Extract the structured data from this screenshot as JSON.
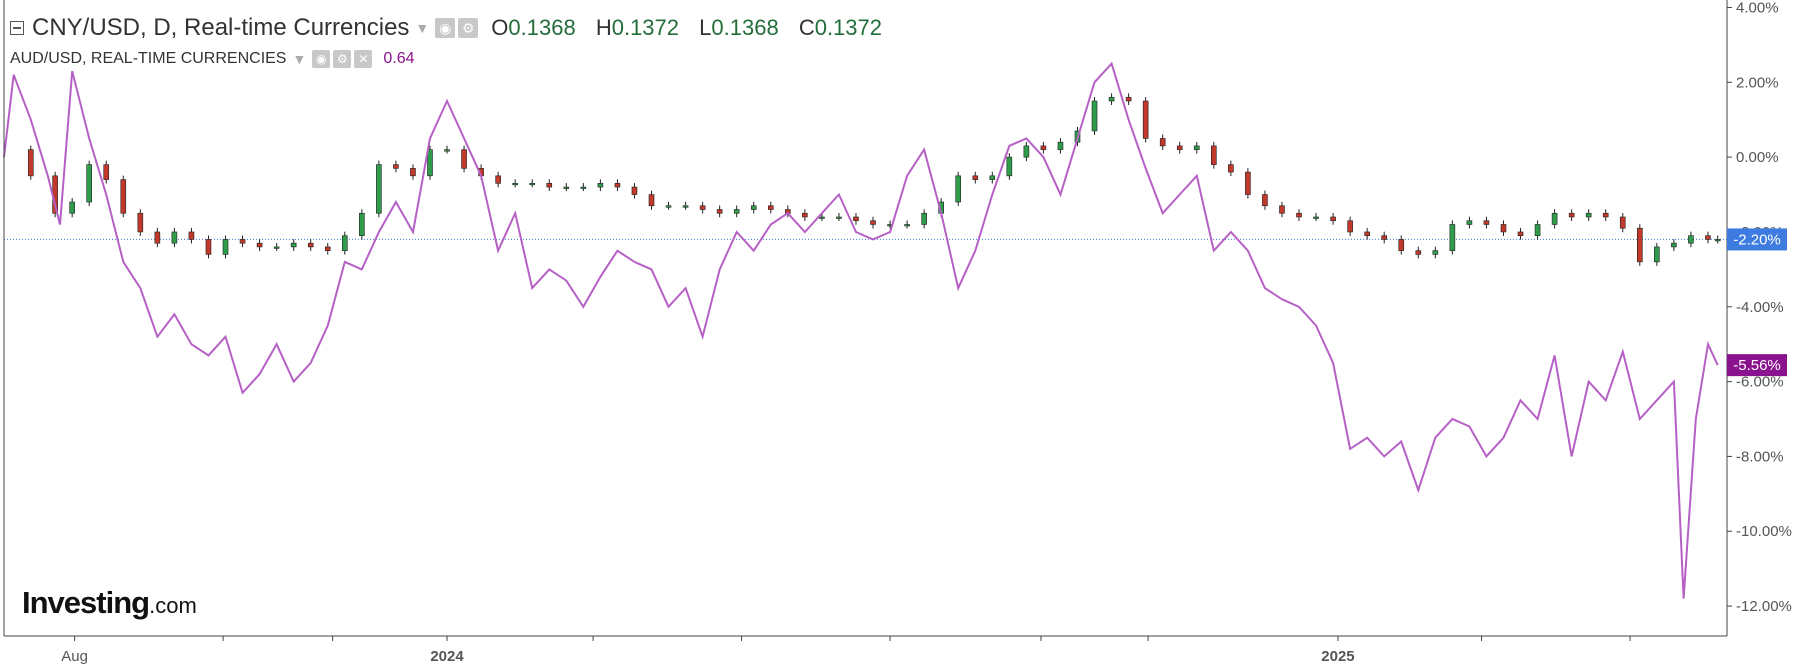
{
  "header": {
    "main_symbol_title": "CNY/USD, D, Real-time Currencies",
    "ohlc": {
      "o_label": "O",
      "o_value": "0.1368",
      "h_label": "H",
      "h_value": "0.1372",
      "l_label": "L",
      "l_value": "0.1368",
      "c_label": "C",
      "c_value": "0.1372"
    },
    "compare_symbol_title": "AUD/USD, REAL-TIME CURRENCIES",
    "compare_value": "0.64"
  },
  "brand": {
    "logo_main": "Investing",
    "logo_suffix": ".com"
  },
  "icons": [
    "collapse-icon",
    "dropdown-caret-icon",
    "eye-icon",
    "gear-icon",
    "close-icon"
  ],
  "colors": {
    "candle_up": "#2e9c4b",
    "candle_down": "#c0392b",
    "compare_line": "#b660c6",
    "current_value_badge": "#3d7be0",
    "compare_badge": "#8a128e",
    "axis_text": "#555555",
    "ohlc_value": "#236d3b"
  },
  "chart_data": {
    "type": "line",
    "grid": false,
    "y_scale": "percent",
    "ylim": [
      -12.8,
      4.2
    ],
    "y_ticks": [
      "4.00%",
      "2.00%",
      "0.00%",
      "-2.00%",
      "-4.00%",
      "-6.00%",
      "-8.00%",
      "-10.00%",
      "-12.00%"
    ],
    "y_tick_values": [
      4,
      2,
      0,
      -2,
      -4,
      -6,
      -8,
      -10,
      -12
    ],
    "x_range": [
      "2023-07-03",
      "2025-06-09"
    ],
    "x_ticks": [
      {
        "label": "Aug",
        "date": "2023-08-01"
      },
      {
        "label": "2024",
        "date": "2024-01-01"
      },
      {
        "label": "2025",
        "date": "2025-01-01"
      }
    ],
    "x_minor_tick_dates": [
      "2023-10-01",
      "2023-11-15",
      "2024-03-01",
      "2024-05-01",
      "2024-07-01",
      "2024-09-01",
      "2024-10-15",
      "2025-03-01",
      "2025-05-01"
    ],
    "current_value_labels": [
      {
        "series": "CNY/USD",
        "label": "-2.20%",
        "value": -2.2
      },
      {
        "series": "AUD/USD",
        "label": "-5.56%",
        "value": -5.56
      }
    ],
    "series": [
      {
        "name": "CNY/USD",
        "style": "candlestick",
        "points": [
          [
            "2023-07-03",
            0.2
          ],
          [
            "2023-07-14",
            -0.5
          ],
          [
            "2023-07-24",
            -1.5
          ],
          [
            "2023-07-31",
            -1.2
          ],
          [
            "2023-08-07",
            -0.2
          ],
          [
            "2023-08-14",
            -0.6
          ],
          [
            "2023-08-21",
            -1.5
          ],
          [
            "2023-08-28",
            -2.0
          ],
          [
            "2023-09-04",
            -2.3
          ],
          [
            "2023-09-11",
            -2.0
          ],
          [
            "2023-09-18",
            -2.2
          ],
          [
            "2023-09-25",
            -2.6
          ],
          [
            "2023-10-02",
            -2.2
          ],
          [
            "2023-10-09",
            -2.3
          ],
          [
            "2023-10-16",
            -2.4
          ],
          [
            "2023-10-23",
            -2.4
          ],
          [
            "2023-10-30",
            -2.3
          ],
          [
            "2023-11-06",
            -2.4
          ],
          [
            "2023-11-13",
            -2.5
          ],
          [
            "2023-11-20",
            -2.1
          ],
          [
            "2023-11-27",
            -1.5
          ],
          [
            "2023-12-04",
            -0.2
          ],
          [
            "2023-12-11",
            -0.3
          ],
          [
            "2023-12-18",
            -0.5
          ],
          [
            "2023-12-25",
            0.2
          ],
          [
            "2024-01-01",
            0.2
          ],
          [
            "2024-01-08",
            -0.3
          ],
          [
            "2024-01-15",
            -0.5
          ],
          [
            "2024-01-22",
            -0.7
          ],
          [
            "2024-01-29",
            -0.7
          ],
          [
            "2024-02-05",
            -0.7
          ],
          [
            "2024-02-12",
            -0.8
          ],
          [
            "2024-02-19",
            -0.8
          ],
          [
            "2024-02-26",
            -0.8
          ],
          [
            "2024-03-04",
            -0.7
          ],
          [
            "2024-03-11",
            -0.8
          ],
          [
            "2024-03-18",
            -1.0
          ],
          [
            "2024-03-25",
            -1.3
          ],
          [
            "2024-04-01",
            -1.3
          ],
          [
            "2024-04-08",
            -1.3
          ],
          [
            "2024-04-15",
            -1.4
          ],
          [
            "2024-04-22",
            -1.5
          ],
          [
            "2024-04-29",
            -1.4
          ],
          [
            "2024-05-06",
            -1.3
          ],
          [
            "2024-05-13",
            -1.4
          ],
          [
            "2024-05-20",
            -1.5
          ],
          [
            "2024-05-27",
            -1.6
          ],
          [
            "2024-06-03",
            -1.6
          ],
          [
            "2024-06-10",
            -1.6
          ],
          [
            "2024-06-17",
            -1.7
          ],
          [
            "2024-06-24",
            -1.8
          ],
          [
            "2024-07-01",
            -1.8
          ],
          [
            "2024-07-08",
            -1.8
          ],
          [
            "2024-07-15",
            -1.5
          ],
          [
            "2024-07-22",
            -1.2
          ],
          [
            "2024-07-29",
            -0.5
          ],
          [
            "2024-08-05",
            -0.6
          ],
          [
            "2024-08-12",
            -0.5
          ],
          [
            "2024-08-19",
            0.0
          ],
          [
            "2024-08-26",
            0.3
          ],
          [
            "2024-09-02",
            0.2
          ],
          [
            "2024-09-09",
            0.4
          ],
          [
            "2024-09-16",
            0.7
          ],
          [
            "2024-09-23",
            1.5
          ],
          [
            "2024-09-30",
            1.6
          ],
          [
            "2024-10-07",
            1.5
          ],
          [
            "2024-10-14",
            0.5
          ],
          [
            "2024-10-21",
            0.3
          ],
          [
            "2024-10-28",
            0.2
          ],
          [
            "2024-11-04",
            0.3
          ],
          [
            "2024-11-11",
            -0.2
          ],
          [
            "2024-11-18",
            -0.4
          ],
          [
            "2024-11-25",
            -1.0
          ],
          [
            "2024-12-02",
            -1.3
          ],
          [
            "2024-12-09",
            -1.5
          ],
          [
            "2024-12-16",
            -1.6
          ],
          [
            "2024-12-23",
            -1.6
          ],
          [
            "2024-12-30",
            -1.7
          ],
          [
            "2025-01-06",
            -2.0
          ],
          [
            "2025-01-13",
            -2.1
          ],
          [
            "2025-01-20",
            -2.2
          ],
          [
            "2025-01-27",
            -2.5
          ],
          [
            "2025-02-03",
            -2.6
          ],
          [
            "2025-02-10",
            -2.5
          ],
          [
            "2025-02-17",
            -1.8
          ],
          [
            "2025-02-24",
            -1.7
          ],
          [
            "2025-03-03",
            -1.8
          ],
          [
            "2025-03-10",
            -2.0
          ],
          [
            "2025-03-17",
            -2.1
          ],
          [
            "2025-03-24",
            -1.8
          ],
          [
            "2025-03-31",
            -1.5
          ],
          [
            "2025-04-07",
            -1.6
          ],
          [
            "2025-04-14",
            -1.5
          ],
          [
            "2025-04-21",
            -1.6
          ],
          [
            "2025-04-28",
            -1.9
          ],
          [
            "2025-05-05",
            -2.8
          ],
          [
            "2025-05-12",
            -2.4
          ],
          [
            "2025-05-19",
            -2.3
          ],
          [
            "2025-05-26",
            -2.1
          ],
          [
            "2025-06-02",
            -2.2
          ],
          [
            "2025-06-06",
            -2.2
          ]
        ]
      },
      {
        "name": "AUD/USD",
        "style": "line",
        "points": [
          [
            "2023-07-03",
            0.0
          ],
          [
            "2023-07-07",
            2.2
          ],
          [
            "2023-07-14",
            1.0
          ],
          [
            "2023-07-21",
            -0.5
          ],
          [
            "2023-07-26",
            -1.8
          ],
          [
            "2023-07-31",
            2.3
          ],
          [
            "2023-08-07",
            0.5
          ],
          [
            "2023-08-14",
            -1.0
          ],
          [
            "2023-08-21",
            -2.8
          ],
          [
            "2023-08-28",
            -3.5
          ],
          [
            "2023-09-04",
            -4.8
          ],
          [
            "2023-09-11",
            -4.2
          ],
          [
            "2023-09-18",
            -5.0
          ],
          [
            "2023-09-25",
            -5.3
          ],
          [
            "2023-10-02",
            -4.8
          ],
          [
            "2023-10-09",
            -6.3
          ],
          [
            "2023-10-16",
            -5.8
          ],
          [
            "2023-10-23",
            -5.0
          ],
          [
            "2023-10-30",
            -6.0
          ],
          [
            "2023-11-06",
            -5.5
          ],
          [
            "2023-11-13",
            -4.5
          ],
          [
            "2023-11-20",
            -2.8
          ],
          [
            "2023-11-27",
            -3.0
          ],
          [
            "2023-12-04",
            -2.0
          ],
          [
            "2023-12-11",
            -1.2
          ],
          [
            "2023-12-18",
            -2.0
          ],
          [
            "2023-12-25",
            0.5
          ],
          [
            "2024-01-01",
            1.5
          ],
          [
            "2024-01-08",
            0.5
          ],
          [
            "2024-01-15",
            -0.5
          ],
          [
            "2024-01-22",
            -2.5
          ],
          [
            "2024-01-29",
            -1.5
          ],
          [
            "2024-02-05",
            -3.5
          ],
          [
            "2024-02-12",
            -3.0
          ],
          [
            "2024-02-19",
            -3.3
          ],
          [
            "2024-02-26",
            -4.0
          ],
          [
            "2024-03-04",
            -3.2
          ],
          [
            "2024-03-11",
            -2.5
          ],
          [
            "2024-03-18",
            -2.8
          ],
          [
            "2024-03-25",
            -3.0
          ],
          [
            "2024-04-01",
            -4.0
          ],
          [
            "2024-04-08",
            -3.5
          ],
          [
            "2024-04-15",
            -4.8
          ],
          [
            "2024-04-22",
            -3.0
          ],
          [
            "2024-04-29",
            -2.0
          ],
          [
            "2024-05-06",
            -2.5
          ],
          [
            "2024-05-13",
            -1.8
          ],
          [
            "2024-05-20",
            -1.5
          ],
          [
            "2024-05-27",
            -2.0
          ],
          [
            "2024-06-03",
            -1.5
          ],
          [
            "2024-06-10",
            -1.0
          ],
          [
            "2024-06-17",
            -2.0
          ],
          [
            "2024-06-24",
            -2.2
          ],
          [
            "2024-07-01",
            -2.0
          ],
          [
            "2024-07-08",
            -0.5
          ],
          [
            "2024-07-15",
            0.2
          ],
          [
            "2024-07-22",
            -1.5
          ],
          [
            "2024-07-29",
            -3.5
          ],
          [
            "2024-08-05",
            -2.5
          ],
          [
            "2024-08-12",
            -1.0
          ],
          [
            "2024-08-19",
            0.3
          ],
          [
            "2024-08-26",
            0.5
          ],
          [
            "2024-09-02",
            0.0
          ],
          [
            "2024-09-09",
            -1.0
          ],
          [
            "2024-09-16",
            0.5
          ],
          [
            "2024-09-23",
            2.0
          ],
          [
            "2024-09-30",
            2.5
          ],
          [
            "2024-10-07",
            1.0
          ],
          [
            "2024-10-14",
            -0.3
          ],
          [
            "2024-10-21",
            -1.5
          ],
          [
            "2024-10-28",
            -1.0
          ],
          [
            "2024-11-04",
            -0.5
          ],
          [
            "2024-11-11",
            -2.5
          ],
          [
            "2024-11-18",
            -2.0
          ],
          [
            "2024-11-25",
            -2.5
          ],
          [
            "2024-12-02",
            -3.5
          ],
          [
            "2024-12-09",
            -3.8
          ],
          [
            "2024-12-16",
            -4.0
          ],
          [
            "2024-12-23",
            -4.5
          ],
          [
            "2024-12-30",
            -5.5
          ],
          [
            "2025-01-06",
            -7.8
          ],
          [
            "2025-01-13",
            -7.5
          ],
          [
            "2025-01-20",
            -8.0
          ],
          [
            "2025-01-27",
            -7.6
          ],
          [
            "2025-02-03",
            -8.9
          ],
          [
            "2025-02-10",
            -7.5
          ],
          [
            "2025-02-17",
            -7.0
          ],
          [
            "2025-02-24",
            -7.2
          ],
          [
            "2025-03-03",
            -8.0
          ],
          [
            "2025-03-10",
            -7.5
          ],
          [
            "2025-03-17",
            -6.5
          ],
          [
            "2025-03-24",
            -7.0
          ],
          [
            "2025-03-31",
            -5.3
          ],
          [
            "2025-04-07",
            -8.0
          ],
          [
            "2025-04-14",
            -6.0
          ],
          [
            "2025-04-21",
            -6.5
          ],
          [
            "2025-04-28",
            -5.2
          ],
          [
            "2025-05-05",
            -7.0
          ],
          [
            "2025-05-12",
            -6.5
          ],
          [
            "2025-05-19",
            -6.0
          ],
          [
            "2025-05-23",
            -11.8
          ],
          [
            "2025-05-28",
            -7.0
          ],
          [
            "2025-06-02",
            -5.0
          ],
          [
            "2025-06-06",
            -5.56
          ]
        ]
      }
    ]
  }
}
